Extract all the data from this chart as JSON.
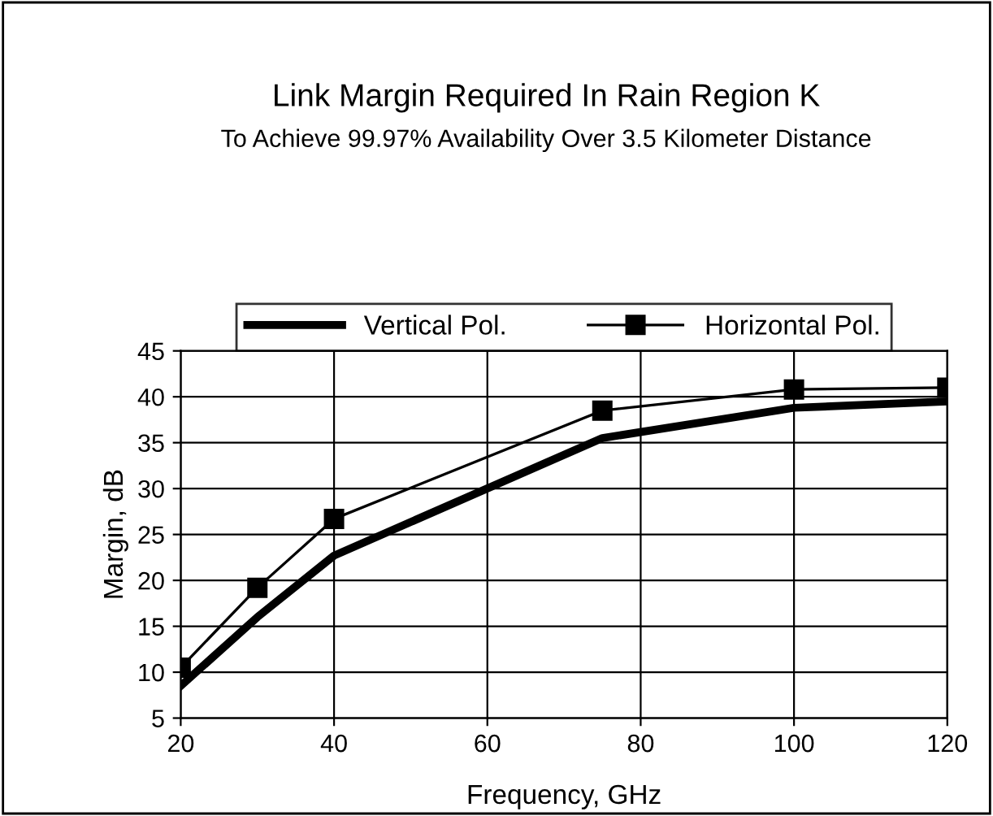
{
  "chart_data": {
    "type": "line",
    "title": "Link Margin Required In Rain Region K",
    "subtitle": "To Achieve 99.97% Availability Over 3.5 Kilometer Distance",
    "xlabel": "Frequency, GHz",
    "ylabel": "Margin, dB",
    "x": [
      20,
      30,
      40,
      75,
      100,
      120
    ],
    "series": [
      {
        "name": "Vertical Pol.",
        "color": "#000000",
        "values": [
          8.5,
          16,
          22.7,
          35.5,
          38.8,
          39.5
        ],
        "marker": "none"
      },
      {
        "name": "Horizontal Pol.",
        "color": "#000000",
        "values": [
          10.5,
          19.2,
          26.7,
          38.5,
          40.8,
          41
        ],
        "marker": "square"
      }
    ],
    "xlim": [
      20,
      120
    ],
    "xticks": [
      20,
      40,
      60,
      80,
      100,
      120
    ],
    "ylim": [
      5,
      45
    ],
    "yticks": [
      5,
      10,
      15,
      20,
      25,
      30,
      35,
      40,
      45
    ],
    "grid": true,
    "legend": "top"
  }
}
